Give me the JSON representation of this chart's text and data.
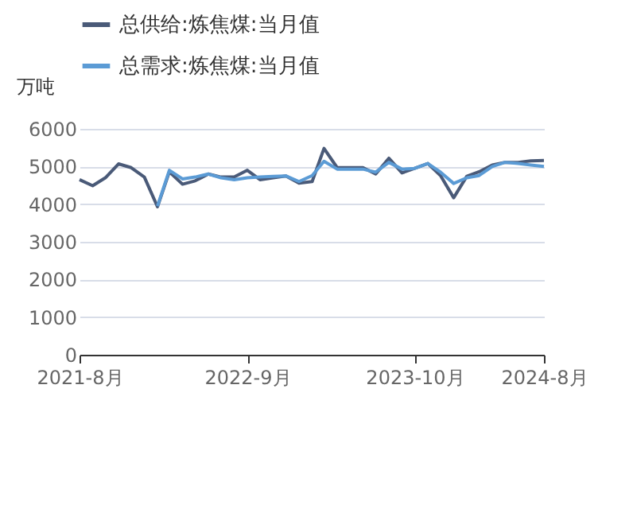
{
  "chart_data": {
    "type": "line",
    "ylabel": "万吨",
    "x": [
      "2021-08",
      "2021-09",
      "2021-10",
      "2021-11",
      "2021-12",
      "2022-01",
      "2022-02",
      "2022-03",
      "2022-04",
      "2022-05",
      "2022-06",
      "2022-07",
      "2022-08",
      "2022-09",
      "2022-10",
      "2022-11",
      "2022-12",
      "2023-01",
      "2023-02",
      "2023-03",
      "2023-04",
      "2023-05",
      "2023-06",
      "2023-07",
      "2023-08",
      "2023-09",
      "2023-10",
      "2023-11",
      "2023-12",
      "2024-01",
      "2024-02",
      "2024-03",
      "2024-04",
      "2024-05",
      "2024-06",
      "2024-07",
      "2024-08"
    ],
    "series": [
      {
        "name": "总供给:炼焦煤:当月值",
        "color": "#4a5a78",
        "values": [
          4650,
          4490,
          4700,
          5070,
          4970,
          4720,
          3930,
          4860,
          4530,
          4620,
          4800,
          4720,
          4720,
          4900,
          4650,
          4700,
          4750,
          4560,
          4600,
          5480,
          4970,
          4970,
          4970,
          4800,
          5220,
          4830,
          4950,
          5080,
          4760,
          4170,
          4740,
          4860,
          5040,
          5110,
          5110,
          5150,
          5160
        ]
      },
      {
        "name": "总需求:炼焦煤:当月值",
        "color": "#5b9bd5",
        "values": [
          null,
          null,
          null,
          null,
          null,
          null,
          3950,
          4900,
          4670,
          4720,
          4800,
          4700,
          4650,
          4700,
          4720,
          4740,
          4750,
          4600,
          4760,
          5140,
          4930,
          4930,
          4930,
          4850,
          5110,
          4930,
          4950,
          5080,
          4850,
          4550,
          4700,
          4760,
          5000,
          5110,
          5080,
          5040,
          5000
        ]
      }
    ],
    "xlim": [
      "2021-08",
      "2024-08"
    ],
    "xticks": [
      {
        "value": "2021-08",
        "label": "2021-8月"
      },
      {
        "value": "2022-09",
        "label": "2022-9月"
      },
      {
        "value": "2023-10",
        "label": "2023-10月"
      },
      {
        "value": "2024-08",
        "label": "2024-8月"
      }
    ],
    "ylim": [
      0,
      6000
    ],
    "yticks": [
      0,
      1000,
      2000,
      3000,
      4000,
      5000,
      6000
    ],
    "grid": "y",
    "legend": "top left"
  }
}
